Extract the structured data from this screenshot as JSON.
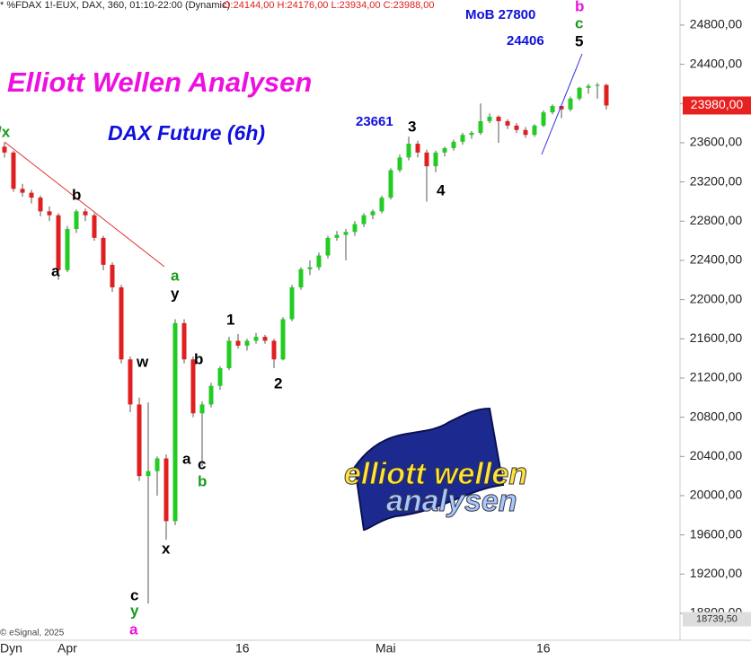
{
  "chart_data": {
    "type": "candlestick",
    "header": "* %FDAX 1!-EUX, DAX, 360, 01:10-22:00 (Dynamic)",
    "header_values": "O:24144,00 H:24176,00 L:23934,00 C:23988,00",
    "title": "Elliott Wellen Analysen",
    "subtitle": "DAX Future (6h)",
    "up_color": "#22cc22",
    "down_color": "#e02020",
    "ylim": [
      18690,
      25056
    ],
    "yticks": [
      {
        "value": 18800,
        "label": "18800,00"
      },
      {
        "value": 19200,
        "label": "19200,00"
      },
      {
        "value": 19600,
        "label": "19600,00"
      },
      {
        "value": 20000,
        "label": "20000,00"
      },
      {
        "value": 20400,
        "label": "20400,00"
      },
      {
        "value": 20800,
        "label": "20800,00"
      },
      {
        "value": 21200,
        "label": "21200,00"
      },
      {
        "value": 21600,
        "label": "21600,00"
      },
      {
        "value": 22000,
        "label": "22000,00"
      },
      {
        "value": 22400,
        "label": "22400,00"
      },
      {
        "value": 22800,
        "label": "22800,00"
      },
      {
        "value": 23200,
        "label": "23200,00"
      },
      {
        "value": 23600,
        "label": "23600,00"
      },
      {
        "value": 24000,
        "label": "24000,00"
      },
      {
        "value": 24400,
        "label": "24400,00"
      },
      {
        "value": 24800,
        "label": "24800,00"
      }
    ],
    "last_price": {
      "value": 23980,
      "label": "23980,00"
    },
    "low_marker": {
      "value": 18739.5,
      "label": "18739,50"
    },
    "x_labels": [
      "Dyn",
      "Apr",
      "16",
      "Mai",
      "16"
    ],
    "credit": "© eSignal, 2025",
    "logo": [
      "elliott wellen",
      "analysen"
    ],
    "annotations": [
      "/x",
      "b",
      "a",
      "a",
      "y",
      "w",
      "x",
      "c",
      "y",
      "a",
      "1",
      "b",
      "2",
      "a",
      "c",
      "b",
      "3",
      "23661",
      "4",
      "5",
      "c",
      "b",
      "24406",
      "MoB 27800"
    ],
    "candles": [
      [
        23560,
        23600,
        23450,
        23500
      ],
      [
        23500,
        23520,
        23100,
        23130
      ],
      [
        23130,
        23180,
        23050,
        23090
      ],
      [
        23090,
        23120,
        22980,
        23040
      ],
      [
        23040,
        23060,
        22850,
        22900
      ],
      [
        22900,
        22950,
        22800,
        22860
      ],
      [
        22860,
        22880,
        22200,
        22300
      ],
      [
        22300,
        22750,
        22280,
        22720
      ],
      [
        22720,
        22920,
        22680,
        22900
      ],
      [
        22900,
        22930,
        22800,
        22860
      ],
      [
        22860,
        22880,
        22600,
        22630
      ],
      [
        22630,
        22650,
        22300,
        22355
      ],
      [
        22355,
        22380,
        22080,
        22125
      ],
      [
        22125,
        22150,
        21350,
        21390
      ],
      [
        21390,
        21420,
        20850,
        20930
      ],
      [
        20930,
        21000,
        20150,
        20200
      ],
      [
        20200,
        20950,
        18900,
        20250
      ],
      [
        20250,
        20400,
        20000,
        20380
      ],
      [
        20380,
        20420,
        19550,
        19740
      ],
      [
        19740,
        21800,
        19700,
        21760
      ],
      [
        21760,
        21800,
        21350,
        21390
      ],
      [
        21390,
        21420,
        20800,
        20840
      ],
      [
        20840,
        20960,
        20300,
        20930
      ],
      [
        20930,
        21150,
        20900,
        21120
      ],
      [
        21120,
        21320,
        21080,
        21300
      ],
      [
        21300,
        21620,
        21280,
        21580
      ],
      [
        21580,
        21650,
        21500,
        21530
      ],
      [
        21530,
        21600,
        21480,
        21580
      ],
      [
        21580,
        21660,
        21550,
        21620
      ],
      [
        21620,
        21640,
        21550,
        21580
      ],
      [
        21580,
        21600,
        21300,
        21390
      ],
      [
        21390,
        21820,
        21380,
        21800
      ],
      [
        21800,
        22150,
        21780,
        22125
      ],
      [
        22125,
        22330,
        22100,
        22310
      ],
      [
        22310,
        22400,
        22250,
        22330
      ],
      [
        22330,
        22480,
        22300,
        22450
      ],
      [
        22450,
        22650,
        22420,
        22630
      ],
      [
        22630,
        22700,
        22600,
        22660
      ],
      [
        22660,
        22720,
        22400,
        22690
      ],
      [
        22690,
        22800,
        22650,
        22770
      ],
      [
        22770,
        22880,
        22740,
        22860
      ],
      [
        22860,
        22920,
        22820,
        22900
      ],
      [
        22900,
        23060,
        22880,
        23040
      ],
      [
        23040,
        23340,
        23020,
        23320
      ],
      [
        23320,
        23480,
        23300,
        23450
      ],
      [
        23450,
        23661,
        23420,
        23590
      ],
      [
        23590,
        23620,
        23450,
        23500
      ],
      [
        23500,
        23530,
        23000,
        23360
      ],
      [
        23360,
        23520,
        23300,
        23500
      ],
      [
        23500,
        23560,
        23460,
        23545
      ],
      [
        23545,
        23630,
        23520,
        23610
      ],
      [
        23610,
        23700,
        23580,
        23680
      ],
      [
        23680,
        23720,
        23640,
        23700
      ],
      [
        23700,
        24000,
        23680,
        23820
      ],
      [
        23820,
        23900,
        23800,
        23865
      ],
      [
        23865,
        23880,
        23600,
        23820
      ],
      [
        23820,
        23840,
        23740,
        23775
      ],
      [
        23775,
        23800,
        23700,
        23730
      ],
      [
        23730,
        23760,
        23650,
        23680
      ],
      [
        23680,
        23790,
        23660,
        23775
      ],
      [
        23775,
        23930,
        23760,
        23910
      ],
      [
        23910,
        23990,
        23890,
        23975
      ],
      [
        23975,
        23990,
        23850,
        23940
      ],
      [
        23940,
        24070,
        23920,
        24050
      ],
      [
        24050,
        24170,
        24030,
        24160
      ],
      [
        24160,
        24200,
        24100,
        24180
      ],
      [
        24180,
        24210,
        24050,
        24190
      ],
      [
        24190,
        24200,
        23940,
        23980
      ]
    ]
  }
}
